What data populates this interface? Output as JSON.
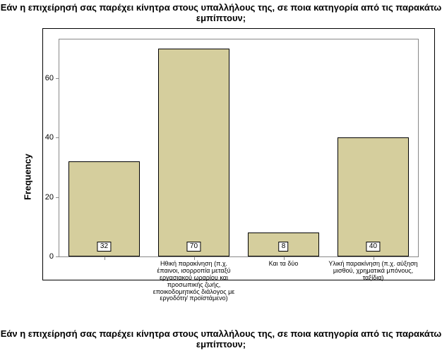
{
  "title": "Εάν η επιχείρησή σας παρέχει κίνητρα στους υπαλλήλους της, σε ποια κατηγορία από τις παρακάτω εμπίπτουν;",
  "xlabel": "Εάν η επιχείρησή σας παρέχει κίνητρα στους υπαλλήλους της, σε ποια κατηγορία από τις παρακάτω εμπίπτουν;",
  "ylabel": "Frequency",
  "chart": {
    "type": "bar",
    "background_color": "#ffffff",
    "bar_color": "#d5ce9d",
    "bar_border_color": "#000000",
    "axis_color": "#888888",
    "outer_border_color": "#000000",
    "ylim": [
      0,
      73
    ],
    "yticks": [
      0,
      20,
      40,
      60
    ],
    "bar_width_ratio": 0.8,
    "categories": [
      "",
      "Ηθική παρακίνηση (π.χ. έπαινοι, ισορροπία μεταξύ εργασιακού ωραρίου και προσωπικής ζωής, εποικοδομητικός διάλογος με εργοδότη/ προϊστάμενο)",
      "Και τα δύο",
      "Υλική παρακίνηση (π.χ. αύξηση μισθού, χρηματικά μπόνους, ταξίδια)"
    ],
    "values": [
      32,
      70,
      8,
      40
    ],
    "title_fontsize": 13,
    "label_fontsize": 13,
    "tick_fontsize": 11,
    "category_fontsize": 9,
    "value_fontsize": 10
  }
}
